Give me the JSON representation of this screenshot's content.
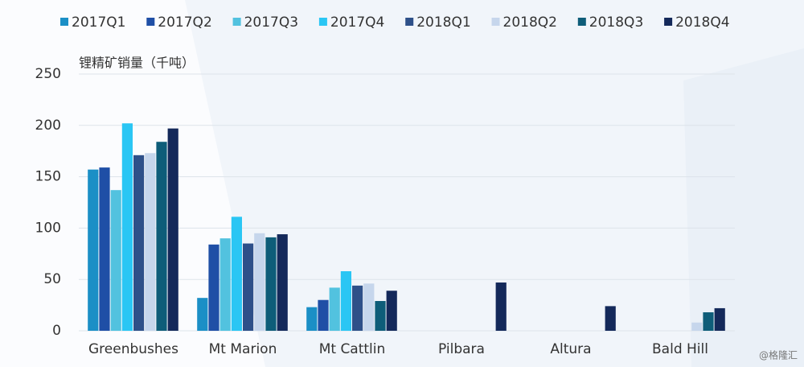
{
  "chart_data": {
    "type": "bar",
    "y_label": "锂精矿销量（千吨）",
    "watermark": "@格隆汇",
    "categories": [
      "Greenbushes",
      "Mt Marion",
      "Mt Cattlin",
      "Pilbara",
      "Altura",
      "Bald Hill"
    ],
    "series": [
      {
        "name": "2017Q1",
        "color": "#1b8fc6",
        "values": [
          157,
          32,
          23,
          null,
          null,
          null
        ]
      },
      {
        "name": "2017Q2",
        "color": "#1f4fa6",
        "values": [
          159,
          84,
          30,
          null,
          null,
          null
        ]
      },
      {
        "name": "2017Q3",
        "color": "#52c2df",
        "values": [
          137,
          90,
          42,
          null,
          null,
          null
        ]
      },
      {
        "name": "2017Q4",
        "color": "#2ac6f4",
        "values": [
          202,
          111,
          58,
          null,
          null,
          null
        ]
      },
      {
        "name": "2018Q1",
        "color": "#2e5089",
        "values": [
          171,
          85,
          44,
          null,
          null,
          null
        ]
      },
      {
        "name": "2018Q2",
        "color": "#c6d6ec",
        "values": [
          173,
          95,
          46,
          null,
          null,
          8
        ]
      },
      {
        "name": "2018Q3",
        "color": "#0e5d79",
        "values": [
          184,
          91,
          29,
          null,
          null,
          18
        ]
      },
      {
        "name": "2018Q4",
        "color": "#14295a",
        "values": [
          197,
          94,
          39,
          47,
          24,
          22
        ]
      }
    ],
    "ylim": [
      0,
      250
    ],
    "yticks": [
      0,
      50,
      100,
      150,
      200,
      250
    ],
    "grid": true
  }
}
